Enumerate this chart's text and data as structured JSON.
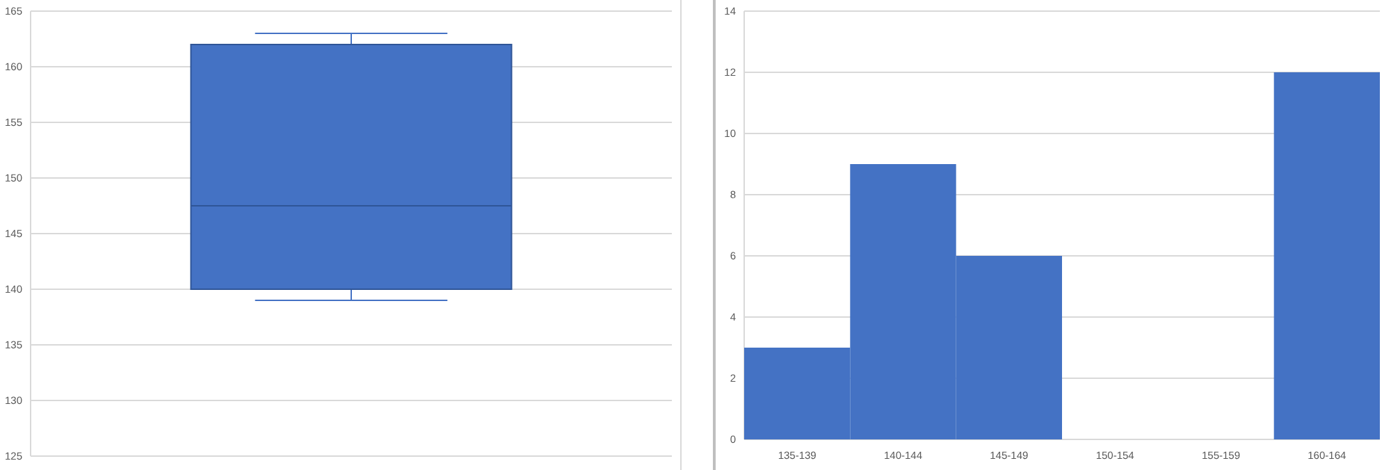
{
  "chart_data": [
    {
      "type": "box",
      "categories": [
        null
      ],
      "color": "#4472c4",
      "boxes": [
        {
          "low": 139,
          "q1": 140,
          "median": 147.5,
          "q3": 162,
          "high": 163
        }
      ],
      "ylim": [
        125,
        165
      ],
      "yticks": [
        125,
        130,
        135,
        140,
        145,
        150,
        155,
        160,
        165
      ],
      "grid": "y"
    },
    {
      "type": "bar",
      "categories": [
        "135-139",
        "140-144",
        "145-149",
        "150-154",
        "155-159",
        "160-164"
      ],
      "values": [
        3,
        9,
        6,
        0,
        0,
        12
      ],
      "color": "#4472c4",
      "ylim": [
        0,
        14
      ],
      "yticks": [
        0,
        2,
        4,
        6,
        8,
        10,
        12,
        14
      ],
      "grid": "y"
    }
  ]
}
